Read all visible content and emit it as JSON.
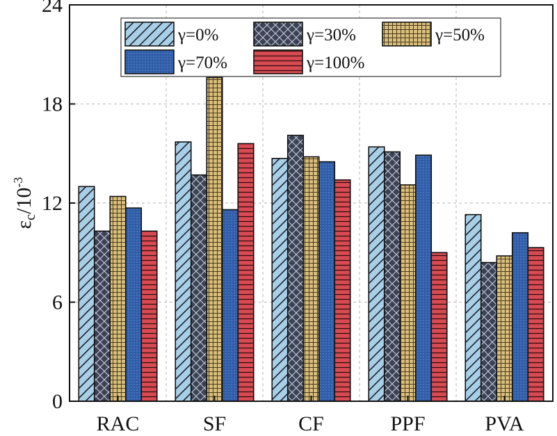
{
  "chart_data": {
    "type": "bar",
    "title": "",
    "xlabel": "",
    "ylabel": {
      "base": "ε",
      "subscript": "c",
      "unit": "/10",
      "exponent": "-3"
    },
    "ylim": [
      0,
      24
    ],
    "yticks": [
      "0",
      "6",
      "12",
      "18",
      "24"
    ],
    "grid": true,
    "legend_position": "top",
    "categories": [
      "RAC",
      "SF",
      "CF",
      "PPF",
      "PVA"
    ],
    "series": [
      {
        "name": "γ=0%",
        "values": [
          13.0,
          15.7,
          14.7,
          15.4,
          11.3
        ],
        "color": "#a8cfe6",
        "pattern": "diagonal-hatch"
      },
      {
        "name": "γ=30%",
        "values": [
          10.3,
          13.7,
          16.1,
          15.1,
          8.4
        ],
        "color": "#3b4256",
        "pattern": "cross-hatch"
      },
      {
        "name": "γ=50%",
        "values": [
          12.4,
          19.6,
          14.8,
          13.1,
          8.8
        ],
        "color": "#d9bf7e",
        "pattern": "grid"
      },
      {
        "name": "γ=70%",
        "values": [
          11.7,
          11.6,
          14.5,
          14.9,
          10.2
        ],
        "color": "#2f5da8",
        "pattern": "dots"
      },
      {
        "name": "γ=100%",
        "values": [
          10.3,
          15.6,
          13.4,
          9.0,
          9.3
        ],
        "color": "#d94a52",
        "pattern": "horizontal-lines"
      }
    ]
  }
}
